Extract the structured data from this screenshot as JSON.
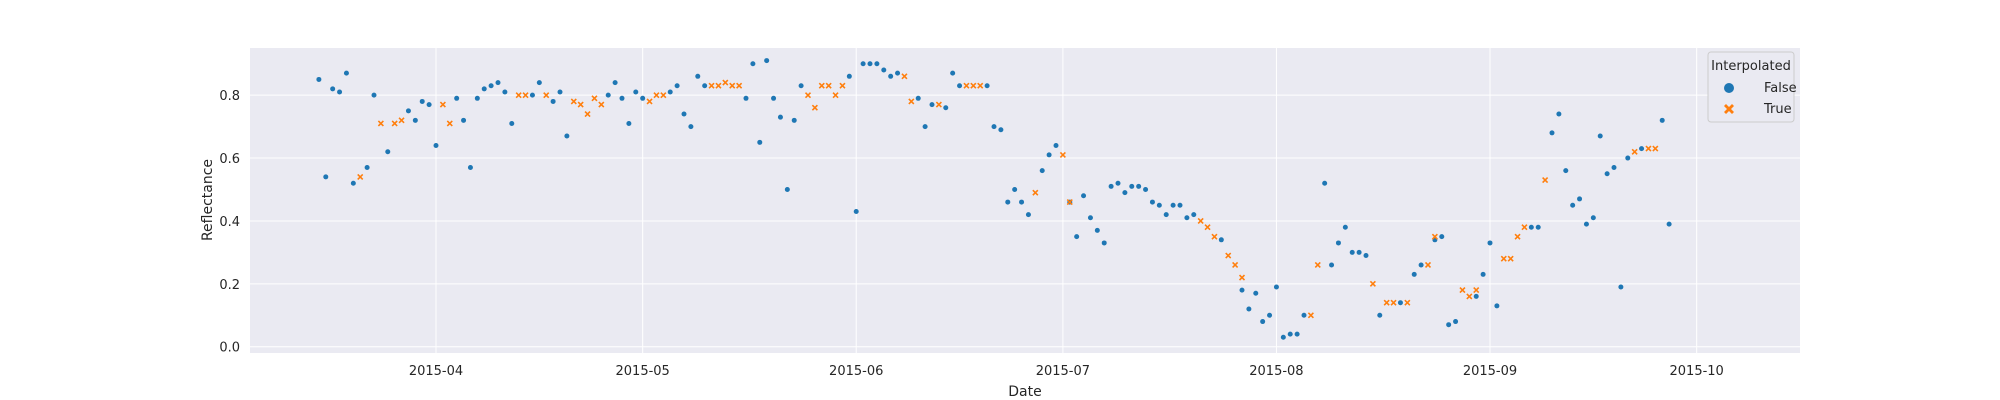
{
  "chart_data": {
    "type": "scatter",
    "xlabel": "Date",
    "ylabel": "Reflectance",
    "x_range": [
      "2015-03-05",
      "2015-10-16"
    ],
    "ylim": [
      -0.02,
      0.95
    ],
    "x_ticks": [
      "2015-04-01",
      "2015-05-01",
      "2015-06-01",
      "2015-07-01",
      "2015-08-01",
      "2015-09-01",
      "2015-10-01"
    ],
    "x_tick_labels": [
      "2015-04",
      "2015-05",
      "2015-06",
      "2015-07",
      "2015-08",
      "2015-09",
      "2015-10"
    ],
    "y_ticks": [
      0.0,
      0.2,
      0.4,
      0.6,
      0.8
    ],
    "y_tick_labels": [
      "0.0",
      "0.2",
      "0.4",
      "0.6",
      "0.8"
    ],
    "grid": true,
    "legend": {
      "title": "Interpolated",
      "placement": "top-right",
      "entries": [
        {
          "label": "False",
          "marker": "circle",
          "color": "#1f77b4"
        },
        {
          "label": "True",
          "marker": "x",
          "color": "#ff7f0e"
        }
      ]
    },
    "colors": {
      "False": "#1f77b4",
      "True": "#ff7f0e",
      "background": "#eaeaf2",
      "grid": "#ffffff"
    },
    "series": [
      {
        "name": "False",
        "marker": "circle",
        "points": [
          [
            "2015-03-15",
            0.85
          ],
          [
            "2015-03-16",
            0.54
          ],
          [
            "2015-03-17",
            0.82
          ],
          [
            "2015-03-18",
            0.81
          ],
          [
            "2015-03-19",
            0.87
          ],
          [
            "2015-03-20",
            0.52
          ],
          [
            "2015-03-22",
            0.57
          ],
          [
            "2015-03-23",
            0.8
          ],
          [
            "2015-03-25",
            0.62
          ],
          [
            "2015-03-28",
            0.75
          ],
          [
            "2015-03-29",
            0.72
          ],
          [
            "2015-03-30",
            0.78
          ],
          [
            "2015-03-31",
            0.77
          ],
          [
            "2015-04-01",
            0.64
          ],
          [
            "2015-04-04",
            0.79
          ],
          [
            "2015-04-05",
            0.72
          ],
          [
            "2015-04-06",
            0.57
          ],
          [
            "2015-04-07",
            0.79
          ],
          [
            "2015-04-08",
            0.82
          ],
          [
            "2015-04-09",
            0.83
          ],
          [
            "2015-04-10",
            0.84
          ],
          [
            "2015-04-11",
            0.81
          ],
          [
            "2015-04-12",
            0.71
          ],
          [
            "2015-04-15",
            0.8
          ],
          [
            "2015-04-16",
            0.84
          ],
          [
            "2015-04-18",
            0.78
          ],
          [
            "2015-04-19",
            0.81
          ],
          [
            "2015-04-20",
            0.67
          ],
          [
            "2015-04-26",
            0.8
          ],
          [
            "2015-04-27",
            0.84
          ],
          [
            "2015-04-28",
            0.79
          ],
          [
            "2015-04-29",
            0.71
          ],
          [
            "2015-04-30",
            0.81
          ],
          [
            "2015-05-01",
            0.79
          ],
          [
            "2015-05-05",
            0.81
          ],
          [
            "2015-05-06",
            0.83
          ],
          [
            "2015-05-07",
            0.74
          ],
          [
            "2015-05-08",
            0.7
          ],
          [
            "2015-05-09",
            0.86
          ],
          [
            "2015-05-10",
            0.83
          ],
          [
            "2015-05-16",
            0.79
          ],
          [
            "2015-05-17",
            0.9
          ],
          [
            "2015-05-18",
            0.65
          ],
          [
            "2015-05-19",
            0.91
          ],
          [
            "2015-05-20",
            0.79
          ],
          [
            "2015-05-21",
            0.73
          ],
          [
            "2015-05-22",
            0.5
          ],
          [
            "2015-05-23",
            0.72
          ],
          [
            "2015-05-24",
            0.83
          ],
          [
            "2015-05-31",
            0.86
          ],
          [
            "2015-06-01",
            0.43
          ],
          [
            "2015-06-02",
            0.9
          ],
          [
            "2015-06-03",
            0.9
          ],
          [
            "2015-06-04",
            0.9
          ],
          [
            "2015-06-05",
            0.88
          ],
          [
            "2015-06-06",
            0.86
          ],
          [
            "2015-06-07",
            0.87
          ],
          [
            "2015-06-10",
            0.79
          ],
          [
            "2015-06-11",
            0.7
          ],
          [
            "2015-06-12",
            0.77
          ],
          [
            "2015-06-14",
            0.76
          ],
          [
            "2015-06-15",
            0.87
          ],
          [
            "2015-06-16",
            0.83
          ],
          [
            "2015-06-20",
            0.83
          ],
          [
            "2015-06-21",
            0.7
          ],
          [
            "2015-06-22",
            0.69
          ],
          [
            "2015-06-23",
            0.46
          ],
          [
            "2015-06-24",
            0.5
          ],
          [
            "2015-06-25",
            0.46
          ],
          [
            "2015-06-26",
            0.42
          ],
          [
            "2015-06-28",
            0.56
          ],
          [
            "2015-06-29",
            0.61
          ],
          [
            "2015-06-30",
            0.64
          ],
          [
            "2015-07-02",
            0.46
          ],
          [
            "2015-07-03",
            0.35
          ],
          [
            "2015-07-04",
            0.48
          ],
          [
            "2015-07-05",
            0.41
          ],
          [
            "2015-07-06",
            0.37
          ],
          [
            "2015-07-07",
            0.33
          ],
          [
            "2015-07-08",
            0.51
          ],
          [
            "2015-07-09",
            0.52
          ],
          [
            "2015-07-10",
            0.49
          ],
          [
            "2015-07-11",
            0.51
          ],
          [
            "2015-07-12",
            0.51
          ],
          [
            "2015-07-13",
            0.5
          ],
          [
            "2015-07-14",
            0.46
          ],
          [
            "2015-07-15",
            0.45
          ],
          [
            "2015-07-16",
            0.42
          ],
          [
            "2015-07-17",
            0.45
          ],
          [
            "2015-07-18",
            0.45
          ],
          [
            "2015-07-19",
            0.41
          ],
          [
            "2015-07-20",
            0.42
          ],
          [
            "2015-07-24",
            0.34
          ],
          [
            "2015-07-27",
            0.18
          ],
          [
            "2015-07-28",
            0.12
          ],
          [
            "2015-07-29",
            0.17
          ],
          [
            "2015-07-30",
            0.08
          ],
          [
            "2015-07-31",
            0.1
          ],
          [
            "2015-08-01",
            0.19
          ],
          [
            "2015-08-02",
            0.03
          ],
          [
            "2015-08-03",
            0.04
          ],
          [
            "2015-08-04",
            0.04
          ],
          [
            "2015-08-05",
            0.1
          ],
          [
            "2015-08-08",
            0.52
          ],
          [
            "2015-08-09",
            0.26
          ],
          [
            "2015-08-10",
            0.33
          ],
          [
            "2015-08-11",
            0.38
          ],
          [
            "2015-08-12",
            0.3
          ],
          [
            "2015-08-13",
            0.3
          ],
          [
            "2015-08-14",
            0.29
          ],
          [
            "2015-08-16",
            0.1
          ],
          [
            "2015-08-19",
            0.14
          ],
          [
            "2015-08-21",
            0.23
          ],
          [
            "2015-08-22",
            0.26
          ],
          [
            "2015-08-24",
            0.34
          ],
          [
            "2015-08-25",
            0.35
          ],
          [
            "2015-08-26",
            0.07
          ],
          [
            "2015-08-27",
            0.08
          ],
          [
            "2015-08-30",
            0.16
          ],
          [
            "2015-08-31",
            0.23
          ],
          [
            "2015-09-01",
            0.33
          ],
          [
            "2015-09-02",
            0.13
          ],
          [
            "2015-09-07",
            0.38
          ],
          [
            "2015-09-08",
            0.38
          ],
          [
            "2015-09-10",
            0.68
          ],
          [
            "2015-09-11",
            0.74
          ],
          [
            "2015-09-12",
            0.56
          ],
          [
            "2015-09-13",
            0.45
          ],
          [
            "2015-09-14",
            0.47
          ],
          [
            "2015-09-15",
            0.39
          ],
          [
            "2015-09-16",
            0.41
          ],
          [
            "2015-09-17",
            0.67
          ],
          [
            "2015-09-18",
            0.55
          ],
          [
            "2015-09-19",
            0.57
          ],
          [
            "2015-09-20",
            0.19
          ],
          [
            "2015-09-21",
            0.6
          ],
          [
            "2015-09-23",
            0.63
          ],
          [
            "2015-09-26",
            0.72
          ],
          [
            "2015-09-27",
            0.39
          ]
        ]
      },
      {
        "name": "True",
        "marker": "x",
        "points": [
          [
            "2015-03-21",
            0.54
          ],
          [
            "2015-03-24",
            0.71
          ],
          [
            "2015-03-26",
            0.71
          ],
          [
            "2015-03-27",
            0.72
          ],
          [
            "2015-04-02",
            0.77
          ],
          [
            "2015-04-03",
            0.71
          ],
          [
            "2015-04-13",
            0.8
          ],
          [
            "2015-04-14",
            0.8
          ],
          [
            "2015-04-17",
            0.8
          ],
          [
            "2015-04-21",
            0.78
          ],
          [
            "2015-04-22",
            0.77
          ],
          [
            "2015-04-23",
            0.74
          ],
          [
            "2015-04-24",
            0.79
          ],
          [
            "2015-04-25",
            0.77
          ],
          [
            "2015-05-02",
            0.78
          ],
          [
            "2015-05-03",
            0.8
          ],
          [
            "2015-05-04",
            0.8
          ],
          [
            "2015-05-11",
            0.83
          ],
          [
            "2015-05-12",
            0.83
          ],
          [
            "2015-05-13",
            0.84
          ],
          [
            "2015-05-14",
            0.83
          ],
          [
            "2015-05-15",
            0.83
          ],
          [
            "2015-05-25",
            0.8
          ],
          [
            "2015-05-26",
            0.76
          ],
          [
            "2015-05-27",
            0.83
          ],
          [
            "2015-05-28",
            0.83
          ],
          [
            "2015-05-29",
            0.8
          ],
          [
            "2015-05-30",
            0.83
          ],
          [
            "2015-06-08",
            0.86
          ],
          [
            "2015-06-09",
            0.78
          ],
          [
            "2015-06-13",
            0.77
          ],
          [
            "2015-06-17",
            0.83
          ],
          [
            "2015-06-18",
            0.83
          ],
          [
            "2015-06-19",
            0.83
          ],
          [
            "2015-06-27",
            0.49
          ],
          [
            "2015-07-01",
            0.61
          ],
          [
            "2015-07-02",
            0.46
          ],
          [
            "2015-07-21",
            0.4
          ],
          [
            "2015-07-22",
            0.38
          ],
          [
            "2015-07-23",
            0.35
          ],
          [
            "2015-07-25",
            0.29
          ],
          [
            "2015-07-26",
            0.26
          ],
          [
            "2015-07-27",
            0.22
          ],
          [
            "2015-08-06",
            0.1
          ],
          [
            "2015-08-07",
            0.26
          ],
          [
            "2015-08-15",
            0.2
          ],
          [
            "2015-08-17",
            0.14
          ],
          [
            "2015-08-18",
            0.14
          ],
          [
            "2015-08-20",
            0.14
          ],
          [
            "2015-08-23",
            0.26
          ],
          [
            "2015-08-24",
            0.35
          ],
          [
            "2015-08-28",
            0.18
          ],
          [
            "2015-08-29",
            0.16
          ],
          [
            "2015-08-30",
            0.18
          ],
          [
            "2015-09-03",
            0.28
          ],
          [
            "2015-09-04",
            0.28
          ],
          [
            "2015-09-05",
            0.35
          ],
          [
            "2015-09-06",
            0.38
          ],
          [
            "2015-09-09",
            0.53
          ],
          [
            "2015-09-22",
            0.62
          ],
          [
            "2015-09-24",
            0.63
          ],
          [
            "2015-09-25",
            0.63
          ]
        ]
      }
    ]
  }
}
